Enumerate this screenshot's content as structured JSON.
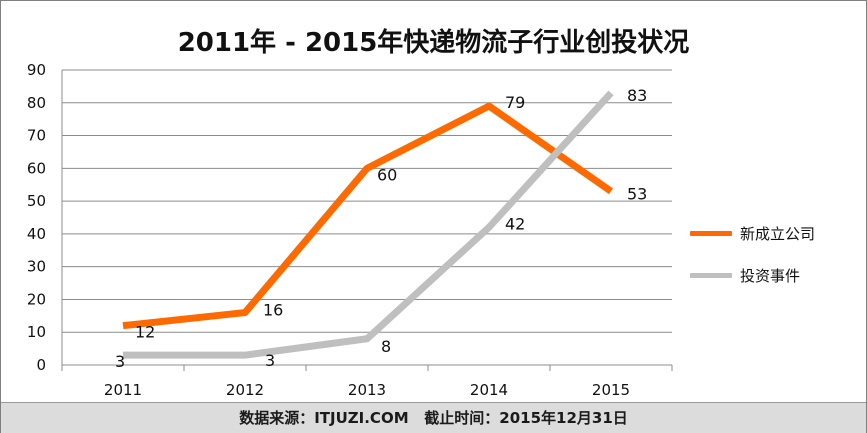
{
  "chart_data": {
    "type": "line",
    "title": "2011年 - 2015年快递物流子行业创投状况",
    "categories": [
      "2011",
      "2012",
      "2013",
      "2014",
      "2015"
    ],
    "ylim": [
      0,
      90
    ],
    "yticks": [
      0,
      10,
      20,
      30,
      40,
      50,
      60,
      70,
      80,
      90
    ],
    "grid": true,
    "legend_position": "right",
    "series": [
      {
        "name": "新成立公司",
        "values": [
          12,
          16,
          60,
          79,
          53
        ],
        "labels": [
          "12",
          "16",
          "60",
          "79",
          "53"
        ],
        "color": "#ff6a00"
      },
      {
        "name": "投资事件",
        "values": [
          3,
          3,
          8,
          42,
          83
        ],
        "labels": [
          "3",
          "3",
          "8",
          "42",
          "83"
        ],
        "color": "#bfbfbf"
      }
    ]
  },
  "footer": {
    "source": "数据来源：ITJUZI.COM",
    "cutoff": "截止时间：2015年12月31日"
  }
}
